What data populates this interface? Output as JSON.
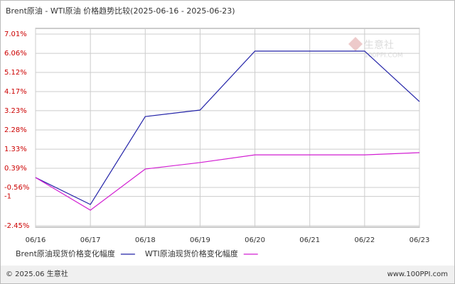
{
  "chart_data": {
    "type": "line",
    "title": "Brent原油 - WTI原油 价格趋势比较(2025-06-16 - 2025-06-23)",
    "categories": [
      "06/16",
      "06/17",
      "06/18",
      "06/19",
      "06/20",
      "06/21",
      "06/22",
      "06/23"
    ],
    "series": [
      {
        "name": "Brent原油现货价格变化幅度",
        "color": "#2323a8",
        "values": [
          -0.07,
          -1.4,
          2.94,
          3.26,
          6.17,
          6.17,
          6.17,
          3.68
        ]
      },
      {
        "name": "WTI原油现货价格变化幅度",
        "color": "#d21ed2",
        "values": [
          -0.07,
          -1.68,
          0.35,
          0.67,
          1.05,
          1.05,
          1.05,
          1.16
        ]
      }
    ],
    "ylim": [
      -2.45,
      7.01
    ],
    "yticks": [
      {
        "value": 7.01,
        "label": "7.01%"
      },
      {
        "value": 6.06,
        "label": "6.06%"
      },
      {
        "value": 5.12,
        "label": "5.12%"
      },
      {
        "value": 4.17,
        "label": "4.17%"
      },
      {
        "value": 3.23,
        "label": "3.23%"
      },
      {
        "value": 2.28,
        "label": "2.28%"
      },
      {
        "value": 1.33,
        "label": "1.33%"
      },
      {
        "value": 0.39,
        "label": "0.39%"
      },
      {
        "value": -0.56,
        "label": "-0.56%"
      },
      -1,
      {
        "value": -2.45,
        "label": "-2.45%"
      }
    ],
    "grid": true,
    "watermark": [
      "生意社",
      "100PPI.COM"
    ],
    "footer": {
      "left": "© 2025.06 生意社",
      "right": "www.100PPI.com"
    }
  }
}
